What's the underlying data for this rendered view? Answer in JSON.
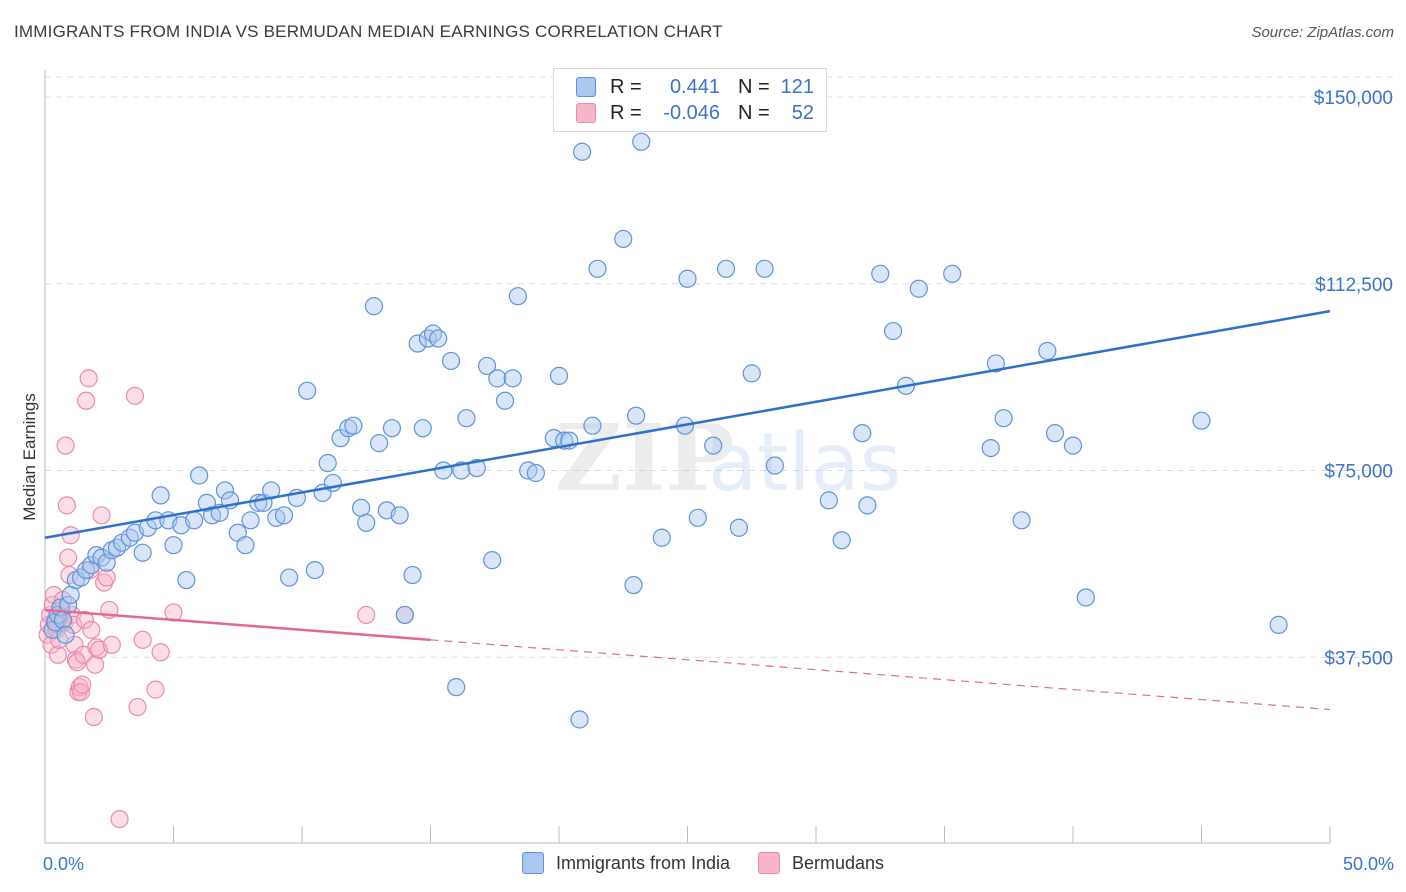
{
  "title": "IMMIGRANTS FROM INDIA VS BERMUDAN MEDIAN EARNINGS CORRELATION CHART",
  "source": "Source: ZipAtlas.com",
  "legend": {
    "row1": {
      "r_label": "R =",
      "r_value": "0.441",
      "n_label": "N =",
      "n_value": "121"
    },
    "row2": {
      "r_label": "R =",
      "r_value": "-0.046",
      "n_label": "N =",
      "n_value": "52"
    }
  },
  "colors": {
    "india_fill": "#a9c8f0",
    "india_stroke": "#5f93d8",
    "india_line": "#2f6fcc",
    "bermuda_fill": "#f6b5c9",
    "bermuda_stroke": "#ec8aab",
    "bermuda_line": "#e06a95",
    "tick_text": "#3a73c9",
    "grid": "#dddddd"
  },
  "chart_data": {
    "type": "scatter",
    "title": "IMMIGRANTS FROM INDIA VS BERMUDAN MEDIAN EARNINGS CORRELATION CHART",
    "xlabel": "",
    "ylabel": "Median Earnings",
    "xlim": [
      0,
      50
    ],
    "ylim": [
      0,
      155000
    ],
    "x_tick_labels": [
      "0.0%",
      "50.0%"
    ],
    "y_ticks": [
      37500,
      75000,
      112500,
      150000
    ],
    "y_tick_labels": [
      "$37,500",
      "$75,000",
      "$112,500",
      "$150,000"
    ],
    "grid": true,
    "legend_position": "top-center",
    "series": [
      {
        "name": "Immigrants from India",
        "r": 0.441,
        "n": 121,
        "trend": {
          "x": [
            0,
            50
          ],
          "y": [
            61500,
            107000
          ],
          "dashed_beyond": null
        },
        "points": [
          [
            0.3,
            43000
          ],
          [
            0.4,
            44500
          ],
          [
            0.5,
            46000
          ],
          [
            0.6,
            47500
          ],
          [
            0.7,
            45000
          ],
          [
            0.8,
            42000
          ],
          [
            0.9,
            48000
          ],
          [
            1.0,
            50000
          ],
          [
            1.2,
            53000
          ],
          [
            1.4,
            53500
          ],
          [
            1.6,
            55000
          ],
          [
            1.8,
            56000
          ],
          [
            2.0,
            58000
          ],
          [
            2.2,
            57500
          ],
          [
            2.4,
            56500
          ],
          [
            2.6,
            59000
          ],
          [
            2.8,
            59500
          ],
          [
            3.0,
            60500
          ],
          [
            3.3,
            61500
          ],
          [
            3.5,
            62500
          ],
          [
            3.8,
            58500
          ],
          [
            4.0,
            63500
          ],
          [
            4.3,
            65000
          ],
          [
            4.5,
            70000
          ],
          [
            4.8,
            65000
          ],
          [
            5.0,
            60000
          ],
          [
            5.3,
            64000
          ],
          [
            5.5,
            53000
          ],
          [
            5.8,
            65000
          ],
          [
            6.0,
            74000
          ],
          [
            6.3,
            68500
          ],
          [
            6.5,
            66000
          ],
          [
            6.8,
            66500
          ],
          [
            7.0,
            71000
          ],
          [
            7.2,
            69000
          ],
          [
            7.5,
            62500
          ],
          [
            7.8,
            60000
          ],
          [
            8.0,
            65000
          ],
          [
            8.3,
            68500
          ],
          [
            8.5,
            68500
          ],
          [
            8.8,
            71000
          ],
          [
            9.0,
            65500
          ],
          [
            9.3,
            66000
          ],
          [
            9.5,
            53500
          ],
          [
            9.8,
            69500
          ],
          [
            10.2,
            91000
          ],
          [
            10.5,
            55000
          ],
          [
            10.8,
            70500
          ],
          [
            11.0,
            76500
          ],
          [
            11.2,
            72500
          ],
          [
            11.5,
            81500
          ],
          [
            11.8,
            83500
          ],
          [
            12.0,
            84000
          ],
          [
            12.3,
            67500
          ],
          [
            12.5,
            64500
          ],
          [
            12.8,
            108000
          ],
          [
            13.0,
            80500
          ],
          [
            13.3,
            67000
          ],
          [
            13.5,
            83500
          ],
          [
            13.8,
            66000
          ],
          [
            14.0,
            46000
          ],
          [
            14.3,
            54000
          ],
          [
            14.5,
            100500
          ],
          [
            14.7,
            83500
          ],
          [
            14.9,
            101500
          ],
          [
            15.1,
            102500
          ],
          [
            15.3,
            101500
          ],
          [
            15.5,
            75000
          ],
          [
            15.8,
            97000
          ],
          [
            16.0,
            31500
          ],
          [
            16.2,
            75000
          ],
          [
            16.4,
            85500
          ],
          [
            16.8,
            75500
          ],
          [
            17.2,
            96000
          ],
          [
            17.4,
            57000
          ],
          [
            17.6,
            93500
          ],
          [
            17.9,
            89000
          ],
          [
            18.2,
            93500
          ],
          [
            18.4,
            110000
          ],
          [
            18.8,
            75000
          ],
          [
            19.1,
            74500
          ],
          [
            19.8,
            81500
          ],
          [
            20.0,
            94000
          ],
          [
            20.2,
            81000
          ],
          [
            20.4,
            81000
          ],
          [
            20.8,
            25000
          ],
          [
            20.9,
            139000
          ],
          [
            21.3,
            84000
          ],
          [
            21.5,
            115500
          ],
          [
            22.5,
            121500
          ],
          [
            22.9,
            52000
          ],
          [
            23.0,
            86000
          ],
          [
            23.2,
            141000
          ],
          [
            24.0,
            61500
          ],
          [
            24.9,
            84000
          ],
          [
            25.0,
            113500
          ],
          [
            25.4,
            65500
          ],
          [
            26.0,
            80000
          ],
          [
            26.5,
            115500
          ],
          [
            27.0,
            63500
          ],
          [
            27.5,
            94500
          ],
          [
            28.0,
            115500
          ],
          [
            28.4,
            76000
          ],
          [
            30.5,
            69000
          ],
          [
            31.0,
            61000
          ],
          [
            31.8,
            82500
          ],
          [
            32.0,
            68000
          ],
          [
            32.5,
            114500
          ],
          [
            33.0,
            103000
          ],
          [
            33.5,
            92000
          ],
          [
            34.0,
            111500
          ],
          [
            35.3,
            114500
          ],
          [
            36.8,
            79500
          ],
          [
            37.0,
            96500
          ],
          [
            37.3,
            85500
          ],
          [
            38.0,
            65000
          ],
          [
            39.0,
            99000
          ],
          [
            39.3,
            82500
          ],
          [
            40.0,
            80000
          ],
          [
            40.5,
            49500
          ],
          [
            45.0,
            85000
          ],
          [
            48.0,
            44000
          ]
        ]
      },
      {
        "name": "Bermudans",
        "r": -0.046,
        "n": 52,
        "trend": {
          "x": [
            0,
            50
          ],
          "y": [
            47000,
            27000
          ],
          "solid_until_x": 15
        },
        "points": [
          [
            0.1,
            42000
          ],
          [
            0.15,
            44000
          ],
          [
            0.2,
            46000
          ],
          [
            0.25,
            40000
          ],
          [
            0.3,
            48000
          ],
          [
            0.35,
            50000
          ],
          [
            0.4,
            45000
          ],
          [
            0.45,
            43000
          ],
          [
            0.5,
            38000
          ],
          [
            0.55,
            41000
          ],
          [
            0.6,
            45500
          ],
          [
            0.65,
            47000
          ],
          [
            0.7,
            49000
          ],
          [
            0.75,
            44500
          ],
          [
            0.8,
            80000
          ],
          [
            0.85,
            68000
          ],
          [
            0.9,
            57500
          ],
          [
            0.95,
            54000
          ],
          [
            1.0,
            62000
          ],
          [
            1.05,
            46000
          ],
          [
            1.1,
            44000
          ],
          [
            1.15,
            40000
          ],
          [
            1.2,
            37000
          ],
          [
            1.25,
            36500
          ],
          [
            1.3,
            30500
          ],
          [
            1.35,
            31500
          ],
          [
            1.4,
            30500
          ],
          [
            1.45,
            32000
          ],
          [
            1.5,
            38000
          ],
          [
            1.55,
            45000
          ],
          [
            1.6,
            89000
          ],
          [
            1.7,
            93500
          ],
          [
            1.75,
            55000
          ],
          [
            1.8,
            43000
          ],
          [
            1.9,
            25500
          ],
          [
            1.95,
            36000
          ],
          [
            2.0,
            39500
          ],
          [
            2.1,
            39000
          ],
          [
            2.2,
            66000
          ],
          [
            2.3,
            52500
          ],
          [
            2.4,
            53500
          ],
          [
            2.5,
            47000
          ],
          [
            2.6,
            40000
          ],
          [
            2.9,
            5000
          ],
          [
            3.5,
            90000
          ],
          [
            3.6,
            27500
          ],
          [
            3.8,
            41000
          ],
          [
            4.3,
            31000
          ],
          [
            4.5,
            38500
          ],
          [
            5.0,
            46500
          ],
          [
            12.5,
            46000
          ],
          [
            14.0,
            46000
          ]
        ]
      }
    ]
  },
  "bottom_legend": [
    {
      "label": "Immigrants from India"
    },
    {
      "label": "Bermudans"
    }
  ],
  "watermark": "ZIPatlas"
}
